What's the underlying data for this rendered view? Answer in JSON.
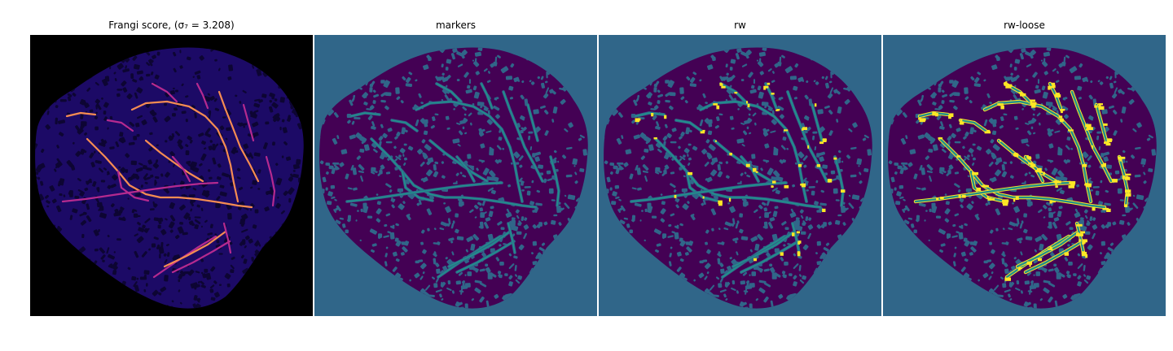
{
  "panels": [
    {
      "id": "frangi",
      "title": "Frangi score, (σ₇ = 3.208)",
      "image": "frangi-filter-response"
    },
    {
      "id": "markers",
      "title": "markers",
      "image": "marker-map"
    },
    {
      "id": "rw",
      "title": "rw",
      "image": "random-walker-segmentation"
    },
    {
      "id": "rw-loose",
      "title": "rw-loose",
      "image": "random-walker-loose-segmentation"
    }
  ],
  "colors": {
    "frangi_background": "#000000",
    "frangi_tissue": "#1c0a66",
    "frangi_texture": "#0d0533",
    "frangi_vessel": "#b52a8f",
    "frangi_vessel_bright": "#f58c52",
    "seg_background": "#306689",
    "seg_tissue": "#440154",
    "seg_vessel": "#21908c",
    "seg_highlight": "#fde725"
  }
}
